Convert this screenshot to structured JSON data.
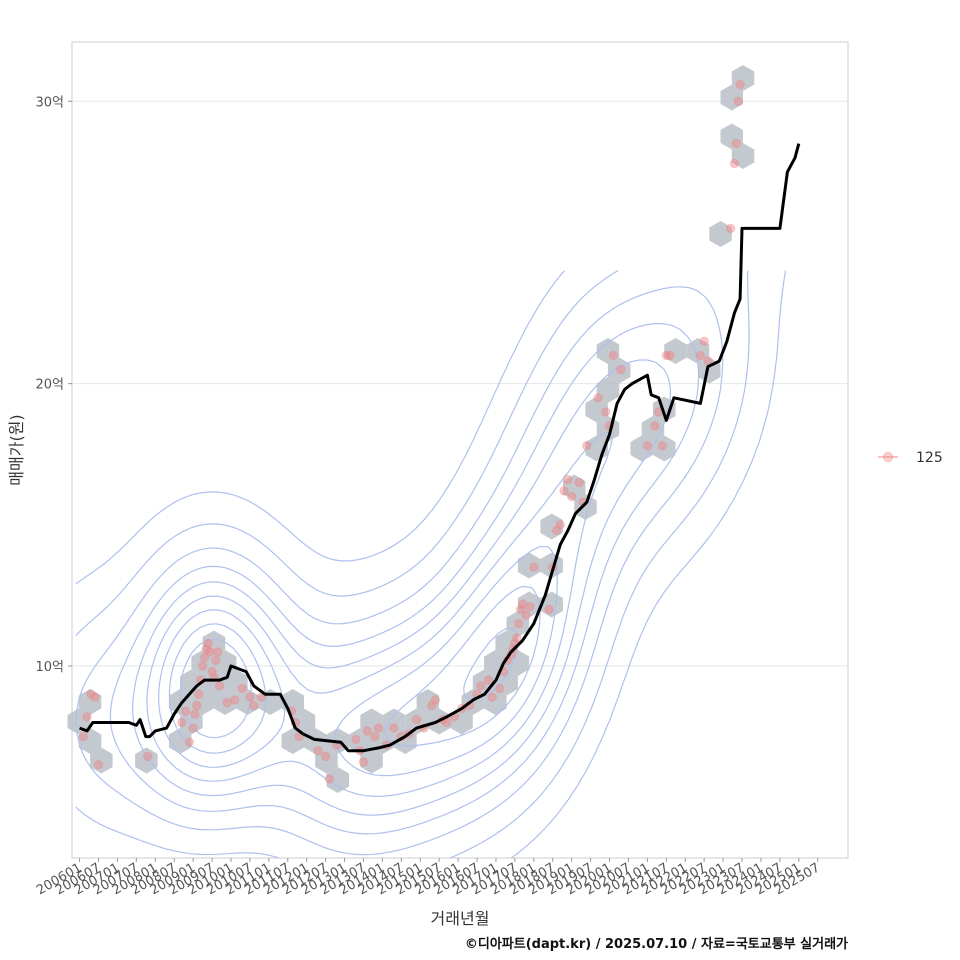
{
  "chart_data": {
    "type": "scatter",
    "xlabel": "거래년월",
    "ylabel": "매매가(원)",
    "caption": "©디아파트(dapt.kr) / 2025.07.10 / 자료=국토교통부 실거래가",
    "x_ticks": [
      "200601",
      "200607",
      "200701",
      "200707",
      "200801",
      "200807",
      "200901",
      "200907",
      "201001",
      "201007",
      "201101",
      "201107",
      "201201",
      "201207",
      "201301",
      "201307",
      "201401",
      "201407",
      "201501",
      "201507",
      "201601",
      "201607",
      "201701",
      "201707",
      "201801",
      "201807",
      "201901",
      "201907",
      "202001",
      "202007",
      "202101",
      "202107",
      "202201",
      "202207",
      "202301",
      "202307",
      "202401",
      "202407",
      "202501",
      "202507"
    ],
    "y_ticks": [
      {
        "value": 10,
        "label": "10억"
      },
      {
        "value": 20,
        "label": "20억"
      },
      {
        "value": 30,
        "label": "30억"
      }
    ],
    "xlim": [
      2005.8,
      2026.3
    ],
    "ylim": [
      3.2,
      32.1
    ],
    "grid": true,
    "legend_position": "right",
    "series": [
      {
        "name": "125",
        "kind": "points",
        "color": "#f08080",
        "points": [
          [
            2006.1,
            7.5
          ],
          [
            2006.2,
            8.2
          ],
          [
            2006.3,
            9.0
          ],
          [
            2006.4,
            8.9
          ],
          [
            2006.5,
            6.5
          ],
          [
            2007.8,
            6.8
          ],
          [
            2008.7,
            8.0
          ],
          [
            2008.8,
            8.4
          ],
          [
            2008.9,
            7.3
          ],
          [
            2009.0,
            7.8
          ],
          [
            2009.05,
            8.3
          ],
          [
            2009.1,
            8.6
          ],
          [
            2009.15,
            9.0
          ],
          [
            2009.2,
            9.5
          ],
          [
            2009.25,
            10.0
          ],
          [
            2009.3,
            10.3
          ],
          [
            2009.35,
            10.6
          ],
          [
            2009.4,
            10.8
          ],
          [
            2009.45,
            10.5
          ],
          [
            2009.5,
            9.8
          ],
          [
            2009.55,
            9.6
          ],
          [
            2009.6,
            10.2
          ],
          [
            2009.65,
            10.5
          ],
          [
            2009.7,
            9.3
          ],
          [
            2009.9,
            8.7
          ],
          [
            2010.1,
            8.8
          ],
          [
            2010.3,
            9.2
          ],
          [
            2010.5,
            8.9
          ],
          [
            2010.6,
            8.6
          ],
          [
            2010.8,
            8.9
          ],
          [
            2011.6,
            8.4
          ],
          [
            2011.7,
            8.0
          ],
          [
            2011.8,
            7.5
          ],
          [
            2012.3,
            7.0
          ],
          [
            2012.5,
            6.8
          ],
          [
            2012.6,
            6.0
          ],
          [
            2012.8,
            7.2
          ],
          [
            2013.3,
            7.4
          ],
          [
            2013.4,
            7.0
          ],
          [
            2013.5,
            6.6
          ],
          [
            2013.6,
            7.7
          ],
          [
            2013.8,
            7.5
          ],
          [
            2013.9,
            7.8
          ],
          [
            2014.1,
            7.2
          ],
          [
            2014.3,
            7.8
          ],
          [
            2014.5,
            7.5
          ],
          [
            2014.7,
            7.6
          ],
          [
            2014.9,
            8.1
          ],
          [
            2015.1,
            7.8
          ],
          [
            2015.3,
            8.6
          ],
          [
            2015.4,
            8.8
          ],
          [
            2015.6,
            8.1
          ],
          [
            2015.7,
            8.0
          ],
          [
            2015.9,
            8.2
          ],
          [
            2016.1,
            8.5
          ],
          [
            2016.3,
            8.6
          ],
          [
            2016.5,
            9.0
          ],
          [
            2016.6,
            9.3
          ],
          [
            2016.8,
            9.5
          ],
          [
            2016.9,
            8.9
          ],
          [
            2017.1,
            9.2
          ],
          [
            2017.2,
            9.8
          ],
          [
            2017.3,
            10.2
          ],
          [
            2017.4,
            10.4
          ],
          [
            2017.45,
            10.6
          ],
          [
            2017.5,
            10.8
          ],
          [
            2017.55,
            11.0
          ],
          [
            2017.6,
            11.5
          ],
          [
            2017.65,
            12.0
          ],
          [
            2017.7,
            12.2
          ],
          [
            2017.8,
            11.8
          ],
          [
            2017.9,
            12.1
          ],
          [
            2018.0,
            13.5
          ],
          [
            2018.4,
            12.0
          ],
          [
            2018.5,
            13.5
          ],
          [
            2018.6,
            14.8
          ],
          [
            2018.7,
            15.0
          ],
          [
            2018.8,
            16.2
          ],
          [
            2018.9,
            16.6
          ],
          [
            2019.0,
            16.0
          ],
          [
            2019.2,
            16.5
          ],
          [
            2019.3,
            15.8
          ],
          [
            2019.4,
            17.8
          ],
          [
            2019.7,
            19.5
          ],
          [
            2019.9,
            19.0
          ],
          [
            2020.0,
            18.5
          ],
          [
            2020.1,
            21.0
          ],
          [
            2020.3,
            20.5
          ],
          [
            2021.0,
            17.8
          ],
          [
            2021.2,
            18.5
          ],
          [
            2021.3,
            19.0
          ],
          [
            2021.4,
            17.8
          ],
          [
            2021.5,
            21.0
          ],
          [
            2021.6,
            21.0
          ],
          [
            2022.4,
            21.0
          ],
          [
            2022.5,
            21.5
          ],
          [
            2022.6,
            20.8
          ],
          [
            2023.2,
            25.5
          ],
          [
            2023.3,
            27.8
          ],
          [
            2023.35,
            28.5
          ],
          [
            2023.4,
            30.0
          ],
          [
            2023.45,
            30.6
          ]
        ]
      },
      {
        "name": "",
        "kind": "trend",
        "color": "#000000",
        "points": [
          [
            2006.0,
            7.8
          ],
          [
            2006.2,
            7.7
          ],
          [
            2006.35,
            8.0
          ],
          [
            2007.3,
            8.0
          ],
          [
            2007.5,
            7.9
          ],
          [
            2007.6,
            8.1
          ],
          [
            2007.75,
            7.5
          ],
          [
            2007.85,
            7.5
          ],
          [
            2008.0,
            7.7
          ],
          [
            2008.3,
            7.8
          ],
          [
            2008.5,
            8.3
          ],
          [
            2008.7,
            8.7
          ],
          [
            2008.9,
            9.0
          ],
          [
            2009.1,
            9.3
          ],
          [
            2009.3,
            9.5
          ],
          [
            2009.7,
            9.5
          ],
          [
            2009.9,
            9.6
          ],
          [
            2010.0,
            10.0
          ],
          [
            2010.4,
            9.8
          ],
          [
            2010.6,
            9.3
          ],
          [
            2010.9,
            9.0
          ],
          [
            2011.3,
            9.0
          ],
          [
            2011.5,
            8.5
          ],
          [
            2011.7,
            7.8
          ],
          [
            2011.9,
            7.6
          ],
          [
            2012.2,
            7.4
          ],
          [
            2012.9,
            7.3
          ],
          [
            2013.1,
            7.0
          ],
          [
            2013.5,
            7.0
          ],
          [
            2013.9,
            7.1
          ],
          [
            2014.2,
            7.2
          ],
          [
            2014.6,
            7.5
          ],
          [
            2014.9,
            7.8
          ],
          [
            2015.4,
            8.0
          ],
          [
            2015.7,
            8.2
          ],
          [
            2016.1,
            8.5
          ],
          [
            2016.4,
            8.8
          ],
          [
            2016.7,
            9.0
          ],
          [
            2017.0,
            9.5
          ],
          [
            2017.2,
            10.1
          ],
          [
            2017.4,
            10.5
          ],
          [
            2017.7,
            10.9
          ],
          [
            2018.0,
            11.5
          ],
          [
            2018.3,
            12.5
          ],
          [
            2018.5,
            13.4
          ],
          [
            2018.7,
            14.3
          ],
          [
            2018.9,
            14.8
          ],
          [
            2019.1,
            15.4
          ],
          [
            2019.4,
            15.8
          ],
          [
            2019.6,
            16.6
          ],
          [
            2019.8,
            17.5
          ],
          [
            2020.0,
            18.2
          ],
          [
            2020.2,
            19.3
          ],
          [
            2020.4,
            19.8
          ],
          [
            2020.6,
            20.0
          ],
          [
            2021.0,
            20.3
          ],
          [
            2021.1,
            19.6
          ],
          [
            2021.3,
            19.5
          ],
          [
            2021.5,
            18.7
          ],
          [
            2021.7,
            19.5
          ],
          [
            2022.4,
            19.3
          ],
          [
            2022.6,
            20.6
          ],
          [
            2022.9,
            20.8
          ],
          [
            2023.1,
            21.5
          ],
          [
            2023.3,
            22.5
          ],
          [
            2023.45,
            23.0
          ],
          [
            2023.5,
            25.5
          ],
          [
            2024.5,
            25.5
          ],
          [
            2024.7,
            27.5
          ],
          [
            2024.9,
            28.0
          ],
          [
            2025.0,
            28.5
          ]
        ]
      }
    ]
  }
}
